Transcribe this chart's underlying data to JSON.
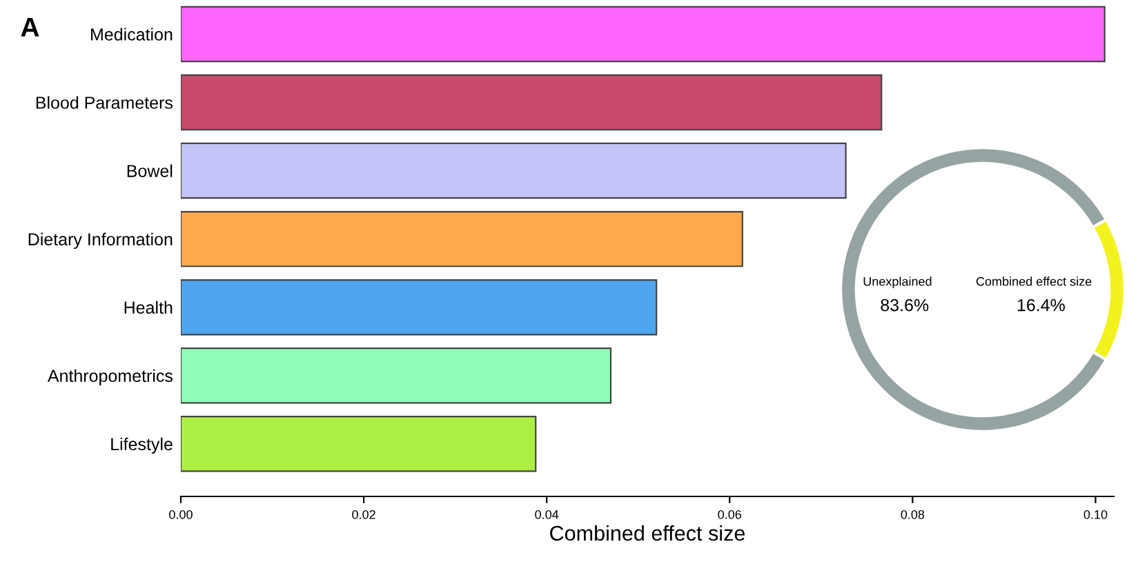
{
  "chart_data": [
    {
      "type": "bar",
      "orientation": "horizontal",
      "xlabel": "Combined effect size",
      "annotations": [
        "A"
      ],
      "categories": [
        "Medication",
        "Blood Parameters",
        "Bowel",
        "Dietary Information",
        "Health",
        "Anthropometrics",
        "Lifestyle"
      ],
      "values": [
        0.101,
        0.0766,
        0.0727,
        0.0614,
        0.052,
        0.047,
        0.0388
      ],
      "colors": [
        "#ff66ff",
        "#c84a6c",
        "#c4c4f8",
        "#ffaa4e",
        "#4ea6ee",
        "#90ffbc",
        "#acf044"
      ],
      "xlim": [
        0,
        0.102
      ],
      "xticks": [
        {
          "value": 0,
          "label": "0.00"
        },
        0.02,
        0.04,
        0.06,
        0.08,
        {
          "value": 0.1,
          "label": "0.10"
        }
      ],
      "grid": false
    },
    {
      "type": "donut",
      "categories": [
        "Unexplained",
        "Combined effect size"
      ],
      "values": [
        83.6,
        16.4
      ],
      "colors": [
        "#95a3a3",
        "#f2f21e"
      ],
      "value_labels": [
        "83.6%",
        "16.4%"
      ]
    }
  ]
}
